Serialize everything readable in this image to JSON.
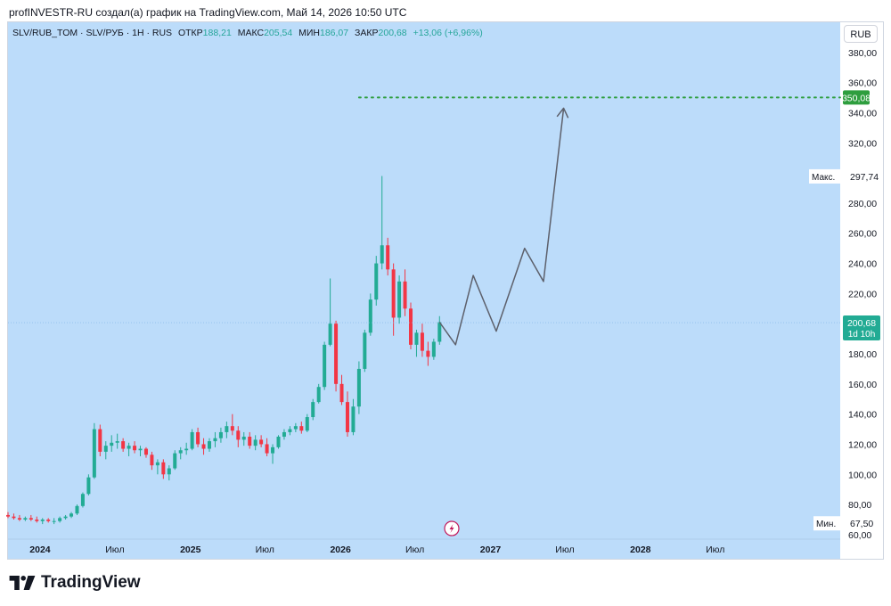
{
  "header": {
    "attribution": "profINVESTR-RU создал(а) график на TradingView.com, Май 14, 2026 10:50 UTC"
  },
  "legend": {
    "symbol": "SLV/RUB_TOM · SLV/РУБ · 1Н · RUS",
    "open_label": "ОТКР",
    "open_value": "188,21",
    "high_label": "МАКС",
    "high_value": "205,54",
    "low_label": "МИН",
    "low_value": "186,07",
    "close_label": "ЗАКР",
    "close_value": "200,68",
    "change": "+13,06 (+6,96%)"
  },
  "currency_button": "RUB",
  "brand": {
    "name": "TradingView"
  },
  "colors": {
    "background": "#bcdcfa",
    "up": "#22ab94",
    "down": "#f23645",
    "target_line": "#2e9e3e",
    "forecast_line": "#5d606b",
    "price_tag": "#22ab94"
  },
  "chart_data": {
    "type": "candlestick",
    "ylim": [
      57,
      400
    ],
    "y_ticks": [
      60,
      80,
      100,
      120,
      140,
      160,
      180,
      200,
      220,
      240,
      260,
      280,
      300,
      320,
      340,
      360,
      380
    ],
    "y_tick_labels": [
      "60,00",
      "80,00",
      "100,00",
      "120,00",
      "140,00",
      "160,00",
      "180,00",
      "200,00",
      "220,00",
      "240,00",
      "260,00",
      "280,00",
      "300,00",
      "320,00",
      "340,00",
      "360,00",
      "380,00"
    ],
    "x_range": [
      "2023-10-15",
      "2029-05-01"
    ],
    "x_ticks": [
      {
        "date": "2024-01-01",
        "label": "2024"
      },
      {
        "date": "2024-07-01",
        "label": "Июл"
      },
      {
        "date": "2025-01-01",
        "label": "2025"
      },
      {
        "date": "2025-07-01",
        "label": "Июл"
      },
      {
        "date": "2026-01-01",
        "label": "2026"
      },
      {
        "date": "2026-07-01",
        "label": "Июл"
      },
      {
        "date": "2027-01-01",
        "label": "2027"
      },
      {
        "date": "2027-07-01",
        "label": "Июл"
      },
      {
        "date": "2028-01-01",
        "label": "2028"
      },
      {
        "date": "2028-07-01",
        "label": "Июл"
      }
    ],
    "candles": [
      {
        "date": "2023-10-15",
        "o": 73,
        "h": 75,
        "l": 71,
        "c": 72
      },
      {
        "date": "2023-10-29",
        "o": 72,
        "h": 74,
        "l": 70,
        "c": 71
      },
      {
        "date": "2023-11-12",
        "o": 71,
        "h": 73,
        "l": 69,
        "c": 70
      },
      {
        "date": "2023-11-26",
        "o": 70,
        "h": 72,
        "l": 69,
        "c": 71
      },
      {
        "date": "2023-12-10",
        "o": 71,
        "h": 73,
        "l": 69,
        "c": 70
      },
      {
        "date": "2023-12-24",
        "o": 70,
        "h": 72,
        "l": 68,
        "c": 69
      },
      {
        "date": "2024-01-07",
        "o": 69,
        "h": 71,
        "l": 67,
        "c": 70
      },
      {
        "date": "2024-01-21",
        "o": 70,
        "h": 71,
        "l": 68,
        "c": 69
      },
      {
        "date": "2024-02-04",
        "o": 69,
        "h": 71,
        "l": 67,
        "c": 69
      },
      {
        "date": "2024-02-18",
        "o": 69,
        "h": 72,
        "l": 68,
        "c": 71
      },
      {
        "date": "2024-03-03",
        "o": 71,
        "h": 73,
        "l": 70,
        "c": 72
      },
      {
        "date": "2024-03-17",
        "o": 72,
        "h": 75,
        "l": 71,
        "c": 74
      },
      {
        "date": "2024-03-31",
        "o": 74,
        "h": 80,
        "l": 73,
        "c": 79
      },
      {
        "date": "2024-04-14",
        "o": 79,
        "h": 88,
        "l": 78,
        "c": 87
      },
      {
        "date": "2024-04-28",
        "o": 87,
        "h": 100,
        "l": 86,
        "c": 98
      },
      {
        "date": "2024-05-12",
        "o": 98,
        "h": 134,
        "l": 97,
        "c": 130
      },
      {
        "date": "2024-05-26",
        "o": 130,
        "h": 133,
        "l": 112,
        "c": 115
      },
      {
        "date": "2024-06-09",
        "o": 115,
        "h": 122,
        "l": 110,
        "c": 119
      },
      {
        "date": "2024-06-23",
        "o": 119,
        "h": 126,
        "l": 115,
        "c": 121
      },
      {
        "date": "2024-07-07",
        "o": 121,
        "h": 127,
        "l": 117,
        "c": 122
      },
      {
        "date": "2024-07-21",
        "o": 122,
        "h": 124,
        "l": 115,
        "c": 117
      },
      {
        "date": "2024-08-04",
        "o": 117,
        "h": 121,
        "l": 112,
        "c": 119
      },
      {
        "date": "2024-08-18",
        "o": 119,
        "h": 122,
        "l": 114,
        "c": 116
      },
      {
        "date": "2024-09-01",
        "o": 116,
        "h": 119,
        "l": 112,
        "c": 117
      },
      {
        "date": "2024-09-15",
        "o": 117,
        "h": 118,
        "l": 111,
        "c": 113
      },
      {
        "date": "2024-09-29",
        "o": 113,
        "h": 115,
        "l": 103,
        "c": 106
      },
      {
        "date": "2024-10-13",
        "o": 106,
        "h": 110,
        "l": 100,
        "c": 108
      },
      {
        "date": "2024-10-27",
        "o": 108,
        "h": 110,
        "l": 97,
        "c": 100
      },
      {
        "date": "2024-11-10",
        "o": 100,
        "h": 106,
        "l": 96,
        "c": 104
      },
      {
        "date": "2024-11-24",
        "o": 104,
        "h": 116,
        "l": 103,
        "c": 114
      },
      {
        "date": "2024-12-08",
        "o": 114,
        "h": 118,
        "l": 110,
        "c": 116
      },
      {
        "date": "2024-12-22",
        "o": 116,
        "h": 121,
        "l": 113,
        "c": 117
      },
      {
        "date": "2025-01-05",
        "o": 117,
        "h": 130,
        "l": 116,
        "c": 128
      },
      {
        "date": "2025-01-19",
        "o": 128,
        "h": 131,
        "l": 118,
        "c": 120
      },
      {
        "date": "2025-02-02",
        "o": 120,
        "h": 124,
        "l": 113,
        "c": 117
      },
      {
        "date": "2025-02-16",
        "o": 117,
        "h": 124,
        "l": 115,
        "c": 122
      },
      {
        "date": "2025-03-02",
        "o": 122,
        "h": 128,
        "l": 118,
        "c": 124
      },
      {
        "date": "2025-03-16",
        "o": 124,
        "h": 131,
        "l": 121,
        "c": 128
      },
      {
        "date": "2025-03-30",
        "o": 128,
        "h": 135,
        "l": 124,
        "c": 132
      },
      {
        "date": "2025-04-13",
        "o": 132,
        "h": 140,
        "l": 126,
        "c": 129
      },
      {
        "date": "2025-04-27",
        "o": 129,
        "h": 132,
        "l": 118,
        "c": 123
      },
      {
        "date": "2025-05-11",
        "o": 123,
        "h": 128,
        "l": 119,
        "c": 125
      },
      {
        "date": "2025-05-25",
        "o": 125,
        "h": 128,
        "l": 117,
        "c": 119
      },
      {
        "date": "2025-06-08",
        "o": 119,
        "h": 126,
        "l": 116,
        "c": 123
      },
      {
        "date": "2025-06-22",
        "o": 123,
        "h": 126,
        "l": 118,
        "c": 120
      },
      {
        "date": "2025-07-06",
        "o": 120,
        "h": 124,
        "l": 112,
        "c": 114
      },
      {
        "date": "2025-07-20",
        "o": 114,
        "h": 120,
        "l": 107,
        "c": 118
      },
      {
        "date": "2025-08-03",
        "o": 118,
        "h": 126,
        "l": 117,
        "c": 125
      },
      {
        "date": "2025-08-17",
        "o": 125,
        "h": 130,
        "l": 123,
        "c": 128
      },
      {
        "date": "2025-08-31",
        "o": 128,
        "h": 132,
        "l": 126,
        "c": 130
      },
      {
        "date": "2025-09-14",
        "o": 130,
        "h": 134,
        "l": 128,
        "c": 132
      },
      {
        "date": "2025-09-28",
        "o": 132,
        "h": 135,
        "l": 127,
        "c": 129
      },
      {
        "date": "2025-10-12",
        "o": 129,
        "h": 140,
        "l": 128,
        "c": 138
      },
      {
        "date": "2025-10-26",
        "o": 138,
        "h": 150,
        "l": 136,
        "c": 148
      },
      {
        "date": "2025-11-09",
        "o": 148,
        "h": 160,
        "l": 147,
        "c": 158
      },
      {
        "date": "2025-11-23",
        "o": 158,
        "h": 188,
        "l": 156,
        "c": 186
      },
      {
        "date": "2025-12-07",
        "o": 186,
        "h": 230,
        "l": 185,
        "c": 200
      },
      {
        "date": "2025-12-21",
        "o": 200,
        "h": 202,
        "l": 155,
        "c": 160
      },
      {
        "date": "2026-01-04",
        "o": 160,
        "h": 166,
        "l": 146,
        "c": 148
      },
      {
        "date": "2026-01-18",
        "o": 148,
        "h": 155,
        "l": 125,
        "c": 128
      },
      {
        "date": "2026-02-01",
        "o": 128,
        "h": 150,
        "l": 126,
        "c": 145
      },
      {
        "date": "2026-02-15",
        "o": 145,
        "h": 175,
        "l": 140,
        "c": 170
      },
      {
        "date": "2026-03-01",
        "o": 170,
        "h": 196,
        "l": 168,
        "c": 194
      },
      {
        "date": "2026-03-15",
        "o": 194,
        "h": 220,
        "l": 192,
        "c": 216
      },
      {
        "date": "2026-03-29",
        "o": 216,
        "h": 245,
        "l": 212,
        "c": 240
      },
      {
        "date": "2026-04-12",
        "o": 240,
        "h": 298,
        "l": 236,
        "c": 252
      },
      {
        "date": "2026-04-26",
        "o": 252,
        "h": 257,
        "l": 232,
        "c": 236
      },
      {
        "date": "2026-05-10",
        "o": 236,
        "h": 240,
        "l": 192,
        "c": 204
      },
      {
        "date": "2026-05-24",
        "o": 204,
        "h": 232,
        "l": 200,
        "c": 228
      },
      {
        "date": "2026-06-07",
        "o": 228,
        "h": 236,
        "l": 205,
        "c": 210
      },
      {
        "date": "2026-06-21",
        "o": 210,
        "h": 214,
        "l": 183,
        "c": 186
      },
      {
        "date": "2026-07-05",
        "o": 186,
        "h": 196,
        "l": 178,
        "c": 194
      },
      {
        "date": "2026-07-19",
        "o": 194,
        "h": 200,
        "l": 178,
        "c": 182
      },
      {
        "date": "2026-08-02",
        "o": 182,
        "h": 188,
        "l": 172,
        "c": 178
      },
      {
        "date": "2026-08-16",
        "o": 178,
        "h": 190,
        "l": 176,
        "c": 188
      },
      {
        "date": "2026-08-30",
        "o": 188,
        "h": 205,
        "l": 186,
        "c": 201
      }
    ],
    "forecast_path": [
      {
        "date": "2026-08-30",
        "y": 201
      },
      {
        "date": "2026-10-08",
        "y": 186
      },
      {
        "date": "2026-11-20",
        "y": 232
      },
      {
        "date": "2027-01-15",
        "y": 195
      },
      {
        "date": "2027-03-25",
        "y": 250
      },
      {
        "date": "2027-05-10",
        "y": 228
      },
      {
        "date": "2027-06-28",
        "y": 343
      }
    ],
    "target_level": 350.08,
    "target_label": "350,08",
    "target_start": "2026-02-15",
    "max_label": "Макс.",
    "max_value": "297,74",
    "min_label": "Мин.",
    "min_value": "67,50",
    "last_price": "200,68",
    "last_price_timer": "1d 10h",
    "current_price": 200.68
  }
}
